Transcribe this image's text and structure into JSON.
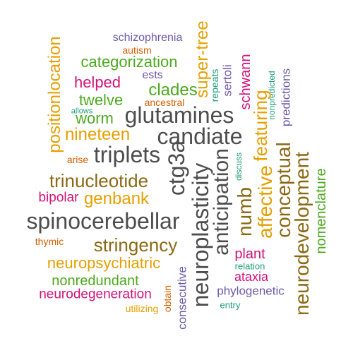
{
  "colors": {
    "charcoal": "#4d4d4d",
    "brown": "#8b6914",
    "orange": "#e69f00",
    "green": "#4daa1f",
    "magenta": "#d4127a",
    "purple": "#6a5aa8",
    "teal": "#1b9e77",
    "rust": "#d95f02"
  },
  "words": [
    {
      "key": "schizophrenia",
      "text": "schizophrenia",
      "color": "purple"
    },
    {
      "key": "autism",
      "text": "autism",
      "color": "rust"
    },
    {
      "key": "positionlocation",
      "text": "positionlocation",
      "color": "orange"
    },
    {
      "key": "categorization",
      "text": "categorization",
      "color": "green"
    },
    {
      "key": "super-tree",
      "text": "super-tree",
      "color": "orange"
    },
    {
      "key": "schwann",
      "text": "schwann",
      "color": "magenta"
    },
    {
      "key": "repeats",
      "text": "repeats",
      "color": "teal"
    },
    {
      "key": "sertoli",
      "text": "sertoli",
      "color": "purple"
    },
    {
      "key": "nonpredicted",
      "text": "nonpredicted",
      "color": "teal"
    },
    {
      "key": "predictions",
      "text": "predictions",
      "color": "purple"
    },
    {
      "key": "helped",
      "text": "helped",
      "color": "magenta"
    },
    {
      "key": "ests",
      "text": "ests",
      "color": "purple"
    },
    {
      "key": "clades",
      "text": "clades",
      "color": "green"
    },
    {
      "key": "twelve",
      "text": "twelve",
      "color": "green"
    },
    {
      "key": "ancestral",
      "text": "ancestral",
      "color": "rust"
    },
    {
      "key": "allows",
      "text": "allows",
      "color": "teal"
    },
    {
      "key": "worm",
      "text": "worm",
      "color": "green"
    },
    {
      "key": "glutamines",
      "text": "glutamines",
      "color": "charcoal"
    },
    {
      "key": "nineteen",
      "text": "nineteen",
      "color": "orange"
    },
    {
      "key": "candiate",
      "text": "candiate",
      "color": "charcoal"
    },
    {
      "key": "featuring",
      "text": "featuring",
      "color": "orange"
    },
    {
      "key": "triplets",
      "text": "triplets",
      "color": "charcoal"
    },
    {
      "key": "arise",
      "text": "arise",
      "color": "rust"
    },
    {
      "key": "ctg3a",
      "text": "ctg3a",
      "color": "charcoal"
    },
    {
      "key": "discuss",
      "text": "discuss",
      "color": "teal"
    },
    {
      "key": "trinucleotide",
      "text": "trinucleotide",
      "color": "brown"
    },
    {
      "key": "genbank",
      "text": "genbank",
      "color": "orange"
    },
    {
      "key": "bipolar",
      "text": "bipolar",
      "color": "magenta"
    },
    {
      "key": "neuroplasticity",
      "text": "neuroplasticity",
      "color": "charcoal"
    },
    {
      "key": "anticipation",
      "text": "anticipation",
      "color": "charcoal"
    },
    {
      "key": "numb",
      "text": "numb",
      "color": "brown"
    },
    {
      "key": "affective",
      "text": "affective",
      "color": "orange"
    },
    {
      "key": "conceptual",
      "text": "conceptual",
      "color": "brown"
    },
    {
      "key": "neurodevelopment",
      "text": "neurodevelopment",
      "color": "brown"
    },
    {
      "key": "nomenclature",
      "text": "nomenclature",
      "color": "green"
    },
    {
      "key": "spinocerebellar",
      "text": "spinocerebellar",
      "color": "charcoal"
    },
    {
      "key": "thymic",
      "text": "thymic",
      "color": "rust"
    },
    {
      "key": "stringency",
      "text": "stringency",
      "color": "brown"
    },
    {
      "key": "plant",
      "text": "plant",
      "color": "magenta"
    },
    {
      "key": "neuropsychiatric",
      "text": "neuropsychiatric",
      "color": "orange"
    },
    {
      "key": "relation",
      "text": "relation",
      "color": "teal"
    },
    {
      "key": "ataxia",
      "text": "ataxia",
      "color": "magenta"
    },
    {
      "key": "consecutive",
      "text": "consecutive",
      "color": "purple"
    },
    {
      "key": "nonredundant",
      "text": "nonredundant",
      "color": "green"
    },
    {
      "key": "neurodegeneration",
      "text": "neurodegeneration",
      "color": "magenta"
    },
    {
      "key": "obtain",
      "text": "obtain",
      "color": "rust"
    },
    {
      "key": "phylogenetic",
      "text": "phylogenetic",
      "color": "purple"
    },
    {
      "key": "utilizing",
      "text": "utilizing",
      "color": "orange"
    },
    {
      "key": "entry",
      "text": "entry",
      "color": "teal"
    }
  ]
}
